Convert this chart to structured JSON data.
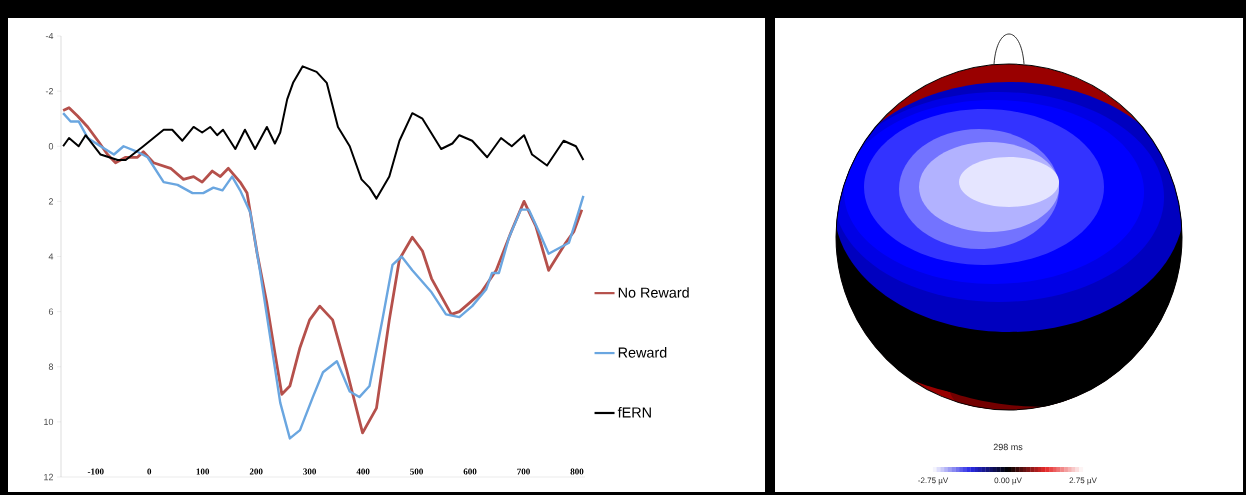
{
  "chart_data": [
    {
      "type": "line",
      "xlim": [
        -165,
        815
      ],
      "ylim": [
        12,
        -4
      ],
      "xticks": [
        -100,
        0,
        100,
        200,
        300,
        400,
        500,
        600,
        700,
        800
      ],
      "yticks": [
        -4,
        -2,
        0,
        2,
        4,
        6,
        8,
        10,
        12
      ],
      "legend": "right",
      "series": [
        {
          "name": "No Reward",
          "color": "#b5504b",
          "x": [
            -161,
            -150,
            -134,
            -115,
            -96,
            -78,
            -63,
            -44,
            -22,
            -11,
            8,
            40,
            64,
            83,
            99,
            118,
            133,
            148,
            170,
            183,
            202,
            220,
            235,
            248,
            263,
            282,
            300,
            319,
            343,
            369,
            399,
            425,
            449,
            468,
            492,
            511,
            528,
            565,
            580,
            598,
            621,
            649,
            677,
            701,
            723,
            747,
            779,
            794,
            809
          ],
          "values": [
            -1.3,
            -1.4,
            -1.1,
            -0.7,
            -0.2,
            0.3,
            0.6,
            0.4,
            0.4,
            0.2,
            0.6,
            0.8,
            1.2,
            1.1,
            1.3,
            0.9,
            1.1,
            0.8,
            1.3,
            1.7,
            3.9,
            5.7,
            7.5,
            9.0,
            8.7,
            7.3,
            6.3,
            5.8,
            6.3,
            8.1,
            10.4,
            9.5,
            6.3,
            4.1,
            3.3,
            3.8,
            4.8,
            6.1,
            6.0,
            5.7,
            5.3,
            4.5,
            3.1,
            2.0,
            2.9,
            4.5,
            3.5,
            3.1,
            2.3
          ]
        },
        {
          "name": "Reward",
          "color": "#6aa6e0",
          "x": [
            -161,
            -147,
            -132,
            -115,
            -91,
            -66,
            -48,
            -22,
            -3,
            27,
            53,
            81,
            101,
            120,
            137,
            155,
            170,
            189,
            207,
            226,
            245,
            263,
            282,
            306,
            325,
            351,
            375,
            393,
            412,
            436,
            455,
            472,
            492,
            528,
            555,
            580,
            604,
            630,
            641,
            654,
            673,
            695,
            710,
            729,
            747,
            766,
            785,
            798,
            812
          ],
          "values": [
            -1.2,
            -0.9,
            -0.9,
            -0.3,
            0.0,
            0.3,
            0.0,
            0.2,
            0.4,
            1.3,
            1.4,
            1.7,
            1.7,
            1.5,
            1.6,
            1.1,
            1.6,
            2.4,
            4.5,
            6.9,
            9.3,
            10.6,
            10.3,
            9.1,
            8.2,
            7.8,
            8.9,
            9.1,
            8.7,
            6.3,
            4.3,
            4.0,
            4.5,
            5.3,
            6.1,
            6.2,
            5.8,
            5.2,
            4.6,
            4.6,
            3.3,
            2.3,
            2.3,
            3.1,
            3.9,
            3.7,
            3.5,
            2.7,
            1.8
          ]
        },
        {
          "name": "fERN",
          "color": "#000000",
          "x": [
            -161,
            -150,
            -132,
            -119,
            -91,
            -59,
            -44,
            -11,
            27,
            43,
            62,
            83,
            99,
            114,
            127,
            138,
            161,
            179,
            198,
            220,
            235,
            245,
            258,
            269,
            287,
            313,
            332,
            353,
            375,
            397,
            412,
            425,
            449,
            468,
            492,
            511,
            546,
            567,
            580,
            604,
            632,
            658,
            678,
            701,
            716,
            744,
            775,
            798,
            812
          ],
          "values": [
            0.0,
            -0.3,
            0.0,
            -0.4,
            0.3,
            0.5,
            0.5,
            0.0,
            -0.6,
            -0.6,
            -0.2,
            -0.7,
            -0.5,
            -0.7,
            -0.4,
            -0.6,
            0.1,
            -0.6,
            0.1,
            -0.7,
            -0.1,
            -0.5,
            -1.7,
            -2.3,
            -2.9,
            -2.7,
            -2.3,
            -0.7,
            0.0,
            1.2,
            1.5,
            1.9,
            1.1,
            -0.2,
            -1.2,
            -1.0,
            0.1,
            -0.1,
            -0.4,
            -0.2,
            0.4,
            -0.3,
            0.0,
            -0.4,
            0.3,
            0.7,
            -0.2,
            0.0,
            0.5
          ]
        }
      ]
    },
    {
      "type": "other",
      "title": "298 ms",
      "annotations": [
        "-2.75 µV",
        "0.00 µV",
        "2.75 µV"
      ]
    }
  ]
}
